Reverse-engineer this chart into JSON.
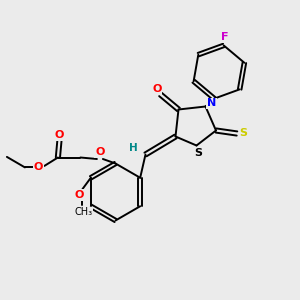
{
  "bg_color": "#ebebeb",
  "fig_size": [
    3.0,
    3.0
  ],
  "dpi": 100,
  "xlim": [
    0,
    10
  ],
  "ylim": [
    0,
    10
  ],
  "colors": {
    "bond": "black",
    "N": "#0000ff",
    "O": "#ff0000",
    "S_exo": "#cccc00",
    "S_ring": "#000000",
    "F": "#cc00cc",
    "H": "#008888",
    "bg": "#ebebeb"
  }
}
